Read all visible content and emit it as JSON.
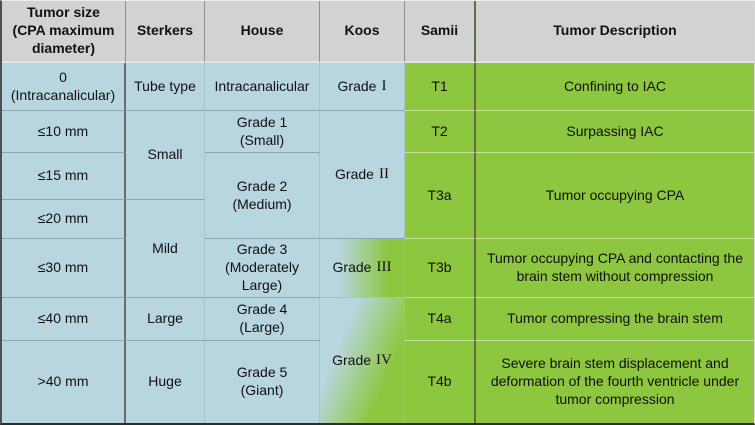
{
  "colors": {
    "header_bg": "#d2d2d2",
    "blue_cell": "#b8d6e0",
    "green_cell": "#8dc63f",
    "text": "#111111"
  },
  "header": {
    "columns": [
      "Tumor size\n(CPA maximum\ndiameter)",
      "Sterkers",
      "House",
      "Koos",
      "Samii",
      "Tumor Description"
    ]
  },
  "body": {
    "tumor_size": [
      "0\n(Intracanalicular)",
      "≤10 mm",
      "≤15 mm",
      "≤20 mm",
      "≤30 mm",
      "≤40 mm",
      ">40 mm"
    ],
    "sterkers": [
      {
        "label": "Tube type"
      },
      {
        "label": "Small"
      },
      {
        "label": "Mild"
      },
      {
        "label": "Large"
      },
      {
        "label": "Huge"
      }
    ],
    "house": [
      {
        "label": "Intracanalicular"
      },
      {
        "label": "Grade 1\n(Small)"
      },
      {
        "label": "Grade 2\n(Medium)"
      },
      {
        "label": "Grade 3\n(Moderately\nLarge)"
      },
      {
        "label": "Grade 4\n(Large)"
      },
      {
        "label": "Grade 5\n(Giant)"
      }
    ],
    "koos": [
      {
        "prefix": "Grade",
        "numeral": "I"
      },
      {
        "prefix": "Grade",
        "numeral": "II"
      },
      {
        "prefix": "Grade",
        "numeral": "III"
      },
      {
        "prefix": "Grade",
        "numeral": "IV"
      }
    ],
    "samii": [
      "T1",
      "T2",
      "T3a",
      "T3b",
      "T4a",
      "T4b"
    ],
    "description": [
      "Confining to IAC",
      "Surpassing IAC",
      "Tumor occupying CPA",
      "Tumor occupying CPA and contacting the brain stem without compression",
      "Tumor compressing the brain stem",
      "Severe brain stem displacement and deformation of the fourth ventricle under tumor compression"
    ]
  }
}
